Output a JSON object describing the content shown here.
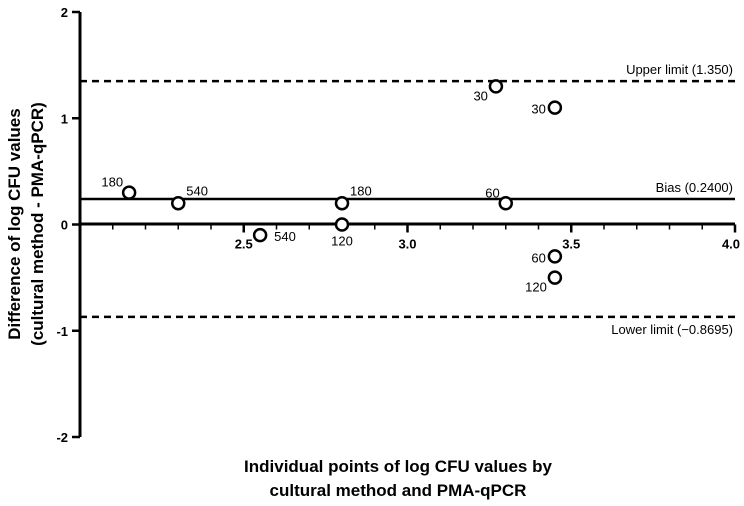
{
  "chart_data": {
    "type": "scatter",
    "title": "",
    "xlabel_lines": [
      "Individual points of log CFU values by",
      "cultural method and PMA-qPCR"
    ],
    "ylabel_lines": [
      "Difference of log CFU values",
      "(cultural method - PMA-qPCR)"
    ],
    "xlim": [
      2.0,
      4.0
    ],
    "ylim": [
      -2,
      2
    ],
    "xticks": [
      {
        "value": 2.5,
        "label": "2.5"
      },
      {
        "value": 3.0,
        "label": "3.0"
      },
      {
        "value": 3.5,
        "label": "3.5"
      },
      {
        "value": 4.0,
        "label": "4.0"
      }
    ],
    "yticks": [
      {
        "value": 2,
        "label": "2"
      },
      {
        "value": 1,
        "label": "1"
      },
      {
        "value": 0,
        "label": "0"
      },
      {
        "value": -1,
        "label": "-1"
      },
      {
        "value": -2,
        "label": "-2"
      }
    ],
    "reference_lines": [
      {
        "name": "upper",
        "y": 1.35,
        "label": "Upper limit (1.350)",
        "style": "dashed"
      },
      {
        "name": "bias",
        "y": 0.24,
        "label": "Bias (0.2400)",
        "style": "solid"
      },
      {
        "name": "lower",
        "y": -0.8695,
        "label": "Lower limit (−0.8695)",
        "style": "dashed"
      }
    ],
    "points": [
      {
        "x": 2.15,
        "y": 0.3,
        "label": "180",
        "label_pos": "upper-left"
      },
      {
        "x": 2.3,
        "y": 0.2,
        "label": "540",
        "label_pos": "upper-right"
      },
      {
        "x": 2.55,
        "y": -0.1,
        "label": "540",
        "label_pos": "right"
      },
      {
        "x": 2.8,
        "y": 0.2,
        "label": "180",
        "label_pos": "upper-right"
      },
      {
        "x": 2.8,
        "y": 0.0,
        "label": "120",
        "label_pos": "below"
      },
      {
        "x": 3.27,
        "y": 1.3,
        "label": "30",
        "label_pos": "lower-left"
      },
      {
        "x": 3.3,
        "y": 0.2,
        "label": "60",
        "label_pos": "upper-left"
      },
      {
        "x": 3.45,
        "y": 1.1,
        "label": "30",
        "label_pos": "left"
      },
      {
        "x": 3.45,
        "y": -0.3,
        "label": "60",
        "label_pos": "left"
      },
      {
        "x": 3.45,
        "y": -0.5,
        "label": "120",
        "label_pos": "lower-left"
      }
    ]
  }
}
